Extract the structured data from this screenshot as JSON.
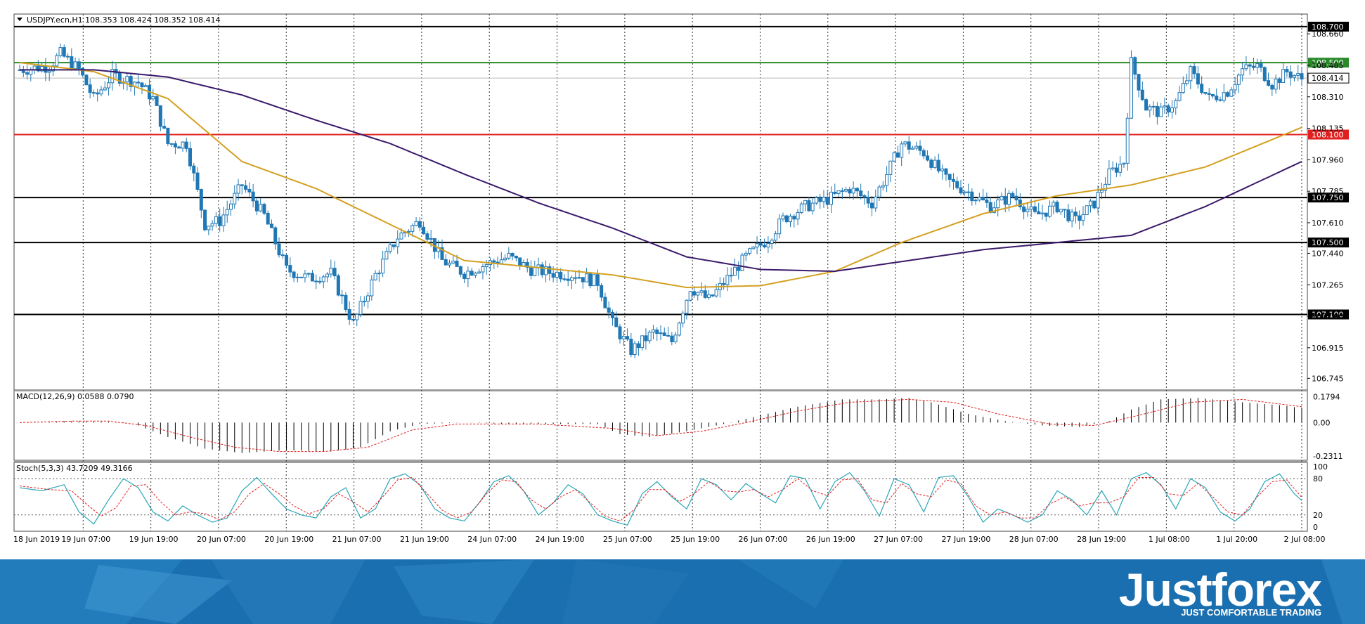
{
  "chart_data": {
    "type": "candlestick",
    "symbol_header": "USDJPY.ecn,H1  108.353 108.424 108.352 108.414",
    "price_axis": {
      "ticks": [
        "108.660",
        "108.485",
        "108.310",
        "108.135",
        "107.960",
        "107.785",
        "107.610",
        "107.440",
        "107.265",
        "107.090",
        "106.915",
        "106.745"
      ],
      "range": [
        106.68,
        108.77
      ]
    },
    "levels": [
      {
        "value": 108.7,
        "label": "108.700",
        "color": "#000000"
      },
      {
        "value": 108.5,
        "label": "108.500",
        "color": "#2a8a2a"
      },
      {
        "value": 108.1,
        "label": "108.100",
        "color": "#e02020"
      },
      {
        "value": 107.75,
        "label": "107.750",
        "color": "#000000"
      },
      {
        "value": 107.5,
        "label": "107.500",
        "color": "#000000"
      },
      {
        "value": 107.1,
        "label": "107.100",
        "color": "#000000"
      }
    ],
    "current_price": {
      "value": 108.414,
      "label": "108.414"
    },
    "x_labels": [
      "18 Jun 2019",
      "19 Jun 07:00",
      "19 Jun 19:00",
      "20 Jun 07:00",
      "20 Jun 19:00",
      "21 Jun 07:00",
      "21 Jun 19:00",
      "24 Jun 07:00",
      "24 Jun 19:00",
      "25 Jun 07:00",
      "25 Jun 19:00",
      "26 Jun 07:00",
      "26 Jun 19:00",
      "27 Jun 07:00",
      "27 Jun 19:00",
      "28 Jun 07:00",
      "28 Jun 19:00",
      "1 Jul 08:00",
      "1 Jul 20:00",
      "2 Jul 08:00"
    ],
    "close_anchors": [
      [
        0,
        108.46
      ],
      [
        8,
        108.48
      ],
      [
        11,
        108.55
      ],
      [
        16,
        108.46
      ],
      [
        20,
        108.3
      ],
      [
        25,
        108.43
      ],
      [
        32,
        108.39
      ],
      [
        36,
        108.3
      ],
      [
        40,
        108.05
      ],
      [
        45,
        108.05
      ],
      [
        50,
        107.6
      ],
      [
        54,
        107.62
      ],
      [
        60,
        107.82
      ],
      [
        66,
        107.65
      ],
      [
        72,
        107.35
      ],
      [
        78,
        107.3
      ],
      [
        84,
        107.33
      ],
      [
        90,
        107.05
      ],
      [
        96,
        107.32
      ],
      [
        102,
        107.53
      ],
      [
        108,
        107.62
      ],
      [
        114,
        107.4
      ],
      [
        120,
        107.33
      ],
      [
        126,
        107.38
      ],
      [
        132,
        107.42
      ],
      [
        138,
        107.35
      ],
      [
        144,
        107.33
      ],
      [
        150,
        107.32
      ],
      [
        156,
        107.28
      ],
      [
        160,
        107.05
      ],
      [
        165,
        106.9
      ],
      [
        171,
        107.0
      ],
      [
        176,
        106.95
      ],
      [
        181,
        107.25
      ],
      [
        186,
        107.18
      ],
      [
        191,
        107.3
      ],
      [
        196,
        107.42
      ],
      [
        202,
        107.52
      ],
      [
        206,
        107.63
      ],
      [
        212,
        107.7
      ],
      [
        218,
        107.74
      ],
      [
        224,
        107.8
      ],
      [
        230,
        107.72
      ],
      [
        234,
        107.88
      ],
      [
        238,
        108.05
      ],
      [
        244,
        108.0
      ],
      [
        250,
        107.85
      ],
      [
        256,
        107.78
      ],
      [
        262,
        107.7
      ],
      [
        268,
        107.76
      ],
      [
        274,
        107.65
      ],
      [
        280,
        107.7
      ],
      [
        285,
        107.62
      ],
      [
        290,
        107.72
      ],
      [
        294,
        107.88
      ],
      [
        298,
        107.95
      ],
      [
        300,
        108.5
      ],
      [
        304,
        108.25
      ],
      [
        308,
        108.22
      ],
      [
        312,
        108.28
      ],
      [
        316,
        108.45
      ],
      [
        321,
        108.3
      ],
      [
        326,
        108.34
      ],
      [
        330,
        108.46
      ],
      [
        334,
        108.48
      ],
      [
        338,
        108.38
      ],
      [
        342,
        108.45
      ],
      [
        346,
        108.41
      ]
    ],
    "ma_fast": {
      "color": "#d4a020",
      "points": [
        [
          0,
          108.5
        ],
        [
          20,
          108.45
        ],
        [
          40,
          108.3
        ],
        [
          60,
          107.95
        ],
        [
          80,
          107.8
        ],
        [
          100,
          107.6
        ],
        [
          120,
          107.4
        ],
        [
          140,
          107.36
        ],
        [
          160,
          107.32
        ],
        [
          180,
          107.25
        ],
        [
          200,
          107.26
        ],
        [
          220,
          107.34
        ],
        [
          238,
          107.5
        ],
        [
          260,
          107.66
        ],
        [
          280,
          107.76
        ],
        [
          300,
          107.82
        ],
        [
          320,
          107.92
        ],
        [
          346,
          108.14
        ]
      ]
    },
    "ma_slow": {
      "color": "#3a1a6a",
      "points": [
        [
          0,
          108.46
        ],
        [
          20,
          108.46
        ],
        [
          40,
          108.42
        ],
        [
          60,
          108.32
        ],
        [
          80,
          108.18
        ],
        [
          100,
          108.05
        ],
        [
          120,
          107.88
        ],
        [
          140,
          107.72
        ],
        [
          160,
          107.58
        ],
        [
          180,
          107.42
        ],
        [
          200,
          107.35
        ],
        [
          220,
          107.34
        ],
        [
          240,
          107.4
        ],
        [
          260,
          107.46
        ],
        [
          280,
          107.5
        ],
        [
          300,
          107.54
        ],
        [
          320,
          107.7
        ],
        [
          346,
          107.95
        ]
      ]
    },
    "macd": {
      "label": "MACD(12,26,9) 0.0588 0.0790",
      "ticks": [
        "0.1794",
        "0.00",
        "-0.2311"
      ],
      "range": [
        -0.26,
        0.22
      ],
      "hist_anchors": [
        [
          0,
          0.0
        ],
        [
          12,
          0.01
        ],
        [
          20,
          0.01
        ],
        [
          30,
          0.0
        ],
        [
          40,
          -0.1
        ],
        [
          50,
          -0.18
        ],
        [
          60,
          -0.21
        ],
        [
          72,
          -0.19
        ],
        [
          84,
          -0.2
        ],
        [
          92,
          -0.17
        ],
        [
          100,
          -0.06
        ],
        [
          108,
          -0.01
        ],
        [
          120,
          0.0
        ],
        [
          132,
          -0.01
        ],
        [
          144,
          -0.01
        ],
        [
          156,
          -0.01
        ],
        [
          162,
          -0.08
        ],
        [
          170,
          -0.1
        ],
        [
          180,
          -0.06
        ],
        [
          190,
          -0.01
        ],
        [
          200,
          0.05
        ],
        [
          210,
          0.11
        ],
        [
          222,
          0.16
        ],
        [
          232,
          0.16
        ],
        [
          240,
          0.17
        ],
        [
          246,
          0.14
        ],
        [
          256,
          0.06
        ],
        [
          266,
          0.01
        ],
        [
          276,
          -0.02
        ],
        [
          286,
          -0.03
        ],
        [
          294,
          0.01
        ],
        [
          300,
          0.09
        ],
        [
          308,
          0.16
        ],
        [
          318,
          0.17
        ],
        [
          330,
          0.14
        ],
        [
          340,
          0.12
        ],
        [
          346,
          0.1
        ]
      ],
      "signal_anchors": [
        [
          0,
          0.0
        ],
        [
          14,
          0.01
        ],
        [
          24,
          0.01
        ],
        [
          34,
          -0.02
        ],
        [
          46,
          -0.1
        ],
        [
          58,
          -0.17
        ],
        [
          70,
          -0.2
        ],
        [
          82,
          -0.2
        ],
        [
          94,
          -0.17
        ],
        [
          106,
          -0.05
        ],
        [
          118,
          -0.01
        ],
        [
          140,
          -0.01
        ],
        [
          160,
          -0.04
        ],
        [
          172,
          -0.09
        ],
        [
          184,
          -0.06
        ],
        [
          196,
          0.0
        ],
        [
          210,
          0.08
        ],
        [
          224,
          0.14
        ],
        [
          240,
          0.16
        ],
        [
          252,
          0.14
        ],
        [
          264,
          0.06
        ],
        [
          278,
          -0.01
        ],
        [
          290,
          -0.02
        ],
        [
          302,
          0.05
        ],
        [
          316,
          0.14
        ],
        [
          330,
          0.16
        ],
        [
          346,
          0.11
        ]
      ]
    },
    "stoch": {
      "label": "Stoch(5,3,3) 43.7209 49.3166",
      "ticks": [
        "100",
        "80",
        "20",
        "0"
      ],
      "range": [
        0,
        100
      ],
      "main_anchors": [
        [
          0,
          65
        ],
        [
          6,
          60
        ],
        [
          12,
          70
        ],
        [
          16,
          25
        ],
        [
          20,
          5
        ],
        [
          24,
          45
        ],
        [
          28,
          80
        ],
        [
          32,
          65
        ],
        [
          36,
          25
        ],
        [
          40,
          10
        ],
        [
          44,
          35
        ],
        [
          48,
          20
        ],
        [
          52,
          8
        ],
        [
          56,
          15
        ],
        [
          60,
          60
        ],
        [
          64,
          82
        ],
        [
          68,
          55
        ],
        [
          72,
          30
        ],
        [
          76,
          20
        ],
        [
          80,
          15
        ],
        [
          84,
          50
        ],
        [
          88,
          65
        ],
        [
          92,
          15
        ],
        [
          96,
          30
        ],
        [
          100,
          80
        ],
        [
          104,
          88
        ],
        [
          108,
          70
        ],
        [
          112,
          30
        ],
        [
          116,
          15
        ],
        [
          120,
          10
        ],
        [
          124,
          40
        ],
        [
          128,
          75
        ],
        [
          132,
          85
        ],
        [
          136,
          60
        ],
        [
          140,
          20
        ],
        [
          144,
          40
        ],
        [
          148,
          70
        ],
        [
          152,
          55
        ],
        [
          156,
          20
        ],
        [
          160,
          10
        ],
        [
          164,
          3
        ],
        [
          168,
          55
        ],
        [
          172,
          75
        ],
        [
          176,
          50
        ],
        [
          180,
          30
        ],
        [
          184,
          80
        ],
        [
          188,
          70
        ],
        [
          192,
          45
        ],
        [
          196,
          72
        ],
        [
          200,
          55
        ],
        [
          204,
          40
        ],
        [
          208,
          85
        ],
        [
          212,
          80
        ],
        [
          216,
          30
        ],
        [
          220,
          75
        ],
        [
          224,
          90
        ],
        [
          228,
          60
        ],
        [
          232,
          18
        ],
        [
          236,
          80
        ],
        [
          240,
          70
        ],
        [
          244,
          25
        ],
        [
          248,
          82
        ],
        [
          252,
          85
        ],
        [
          256,
          50
        ],
        [
          260,
          8
        ],
        [
          264,
          30
        ],
        [
          268,
          20
        ],
        [
          272,
          8
        ],
        [
          276,
          20
        ],
        [
          280,
          60
        ],
        [
          284,
          45
        ],
        [
          288,
          20
        ],
        [
          292,
          60
        ],
        [
          296,
          20
        ],
        [
          300,
          80
        ],
        [
          304,
          90
        ],
        [
          308,
          70
        ],
        [
          312,
          30
        ],
        [
          316,
          80
        ],
        [
          320,
          65
        ],
        [
          324,
          25
        ],
        [
          328,
          10
        ],
        [
          332,
          30
        ],
        [
          336,
          75
        ],
        [
          340,
          88
        ],
        [
          344,
          55
        ],
        [
          346,
          44
        ]
      ],
      "signal_anchors": [
        [
          0,
          68
        ],
        [
          8,
          62
        ],
        [
          14,
          60
        ],
        [
          18,
          38
        ],
        [
          22,
          18
        ],
        [
          26,
          32
        ],
        [
          30,
          68
        ],
        [
          34,
          70
        ],
        [
          38,
          42
        ],
        [
          42,
          20
        ],
        [
          46,
          25
        ],
        [
          50,
          22
        ],
        [
          54,
          12
        ],
        [
          58,
          25
        ],
        [
          62,
          55
        ],
        [
          66,
          72
        ],
        [
          70,
          55
        ],
        [
          74,
          35
        ],
        [
          78,
          22
        ],
        [
          82,
          30
        ],
        [
          86,
          55
        ],
        [
          90,
          42
        ],
        [
          94,
          25
        ],
        [
          98,
          50
        ],
        [
          102,
          78
        ],
        [
          106,
          82
        ],
        [
          110,
          55
        ],
        [
          114,
          28
        ],
        [
          118,
          15
        ],
        [
          122,
          25
        ],
        [
          126,
          55
        ],
        [
          130,
          78
        ],
        [
          134,
          75
        ],
        [
          138,
          45
        ],
        [
          142,
          30
        ],
        [
          146,
          50
        ],
        [
          150,
          62
        ],
        [
          154,
          40
        ],
        [
          158,
          18
        ],
        [
          162,
          10
        ],
        [
          166,
          30
        ],
        [
          170,
          62
        ],
        [
          174,
          62
        ],
        [
          178,
          42
        ],
        [
          182,
          55
        ],
        [
          186,
          75
        ],
        [
          190,
          60
        ],
        [
          194,
          58
        ],
        [
          198,
          62
        ],
        [
          202,
          50
        ],
        [
          206,
          62
        ],
        [
          210,
          80
        ],
        [
          214,
          60
        ],
        [
          218,
          52
        ],
        [
          222,
          78
        ],
        [
          226,
          80
        ],
        [
          230,
          45
        ],
        [
          234,
          40
        ],
        [
          238,
          72
        ],
        [
          242,
          55
        ],
        [
          246,
          50
        ],
        [
          250,
          78
        ],
        [
          254,
          72
        ],
        [
          258,
          35
        ],
        [
          262,
          20
        ],
        [
          266,
          25
        ],
        [
          270,
          15
        ],
        [
          274,
          15
        ],
        [
          278,
          38
        ],
        [
          282,
          50
        ],
        [
          286,
          35
        ],
        [
          290,
          40
        ],
        [
          294,
          40
        ],
        [
          298,
          50
        ],
        [
          302,
          82
        ],
        [
          306,
          82
        ],
        [
          310,
          55
        ],
        [
          314,
          52
        ],
        [
          318,
          72
        ],
        [
          322,
          50
        ],
        [
          326,
          25
        ],
        [
          330,
          20
        ],
        [
          334,
          50
        ],
        [
          338,
          75
        ],
        [
          342,
          78
        ],
        [
          346,
          49
        ]
      ]
    }
  },
  "branding": {
    "name": "Justforex",
    "tagline": "JUST COMFORTABLE TRADING"
  }
}
